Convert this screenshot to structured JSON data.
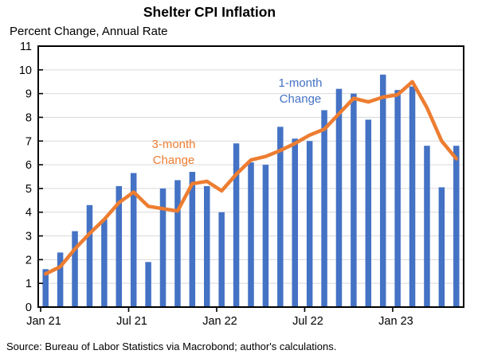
{
  "header": {
    "title": "Shelter CPI Inflation",
    "subtitle": "Percent Change, Annual Rate"
  },
  "annotations": {
    "bar_series_label": "1-month Change",
    "line_series_label": "3-month Change"
  },
  "footer": {
    "source": "Source: Bureau of Labor Statistics via Macrobond; author's calculations."
  },
  "colors": {
    "bar": "#4472C4",
    "line": "#ED7D31",
    "grid": "#D9D9D9",
    "axis": "#000000"
  },
  "chart_data": {
    "type": "bar",
    "title": "Shelter CPI Inflation",
    "ylabel": "Percent Change, Annual Rate",
    "xlabel": "",
    "ylim": [
      0,
      11
    ],
    "yticks": [
      0,
      1,
      2,
      3,
      4,
      5,
      6,
      7,
      8,
      9,
      10,
      11
    ],
    "grid": true,
    "legend_position": "in-plot text annotations",
    "categories": [
      "Jan 21",
      "Feb 21",
      "Mar 21",
      "Apr 21",
      "May 21",
      "Jun 21",
      "Jul 21",
      "Aug 21",
      "Sep 21",
      "Oct 21",
      "Nov 21",
      "Dec 21",
      "Jan 22",
      "Feb 22",
      "Mar 22",
      "Apr 22",
      "May 22",
      "Jun 22",
      "Jul 22",
      "Aug 22",
      "Sep 22",
      "Oct 22",
      "Nov 22",
      "Dec 22",
      "Jan 23",
      "Feb 23",
      "Mar 23",
      "Apr 23",
      "May 23"
    ],
    "xtick_labels": [
      {
        "index": 0,
        "label": "Jan 21"
      },
      {
        "index": 6,
        "label": "Jul 21"
      },
      {
        "index": 12,
        "label": "Jan 22"
      },
      {
        "index": 18,
        "label": "Jul 22"
      },
      {
        "index": 24,
        "label": "Jan 23"
      }
    ],
    "series": [
      {
        "name": "1-month Change",
        "type": "bar",
        "color": "#4472C4",
        "values": [
          1.6,
          2.3,
          3.2,
          4.3,
          3.7,
          5.1,
          5.65,
          1.9,
          5.0,
          5.35,
          5.7,
          5.1,
          4.0,
          6.9,
          6.1,
          6.0,
          7.6,
          7.1,
          7.0,
          8.3,
          9.2,
          9.0,
          7.9,
          9.8,
          9.15,
          9.3,
          6.8,
          5.05,
          6.8
        ]
      },
      {
        "name": "3-month Change",
        "type": "line",
        "color": "#ED7D31",
        "values": [
          1.4,
          1.7,
          2.45,
          3.1,
          3.7,
          4.4,
          4.85,
          4.25,
          4.15,
          4.05,
          5.2,
          5.3,
          4.9,
          5.6,
          6.2,
          6.35,
          6.6,
          6.9,
          7.25,
          7.5,
          8.15,
          8.8,
          8.65,
          8.85,
          8.95,
          9.5,
          8.4,
          7.0,
          6.25
        ]
      }
    ]
  }
}
